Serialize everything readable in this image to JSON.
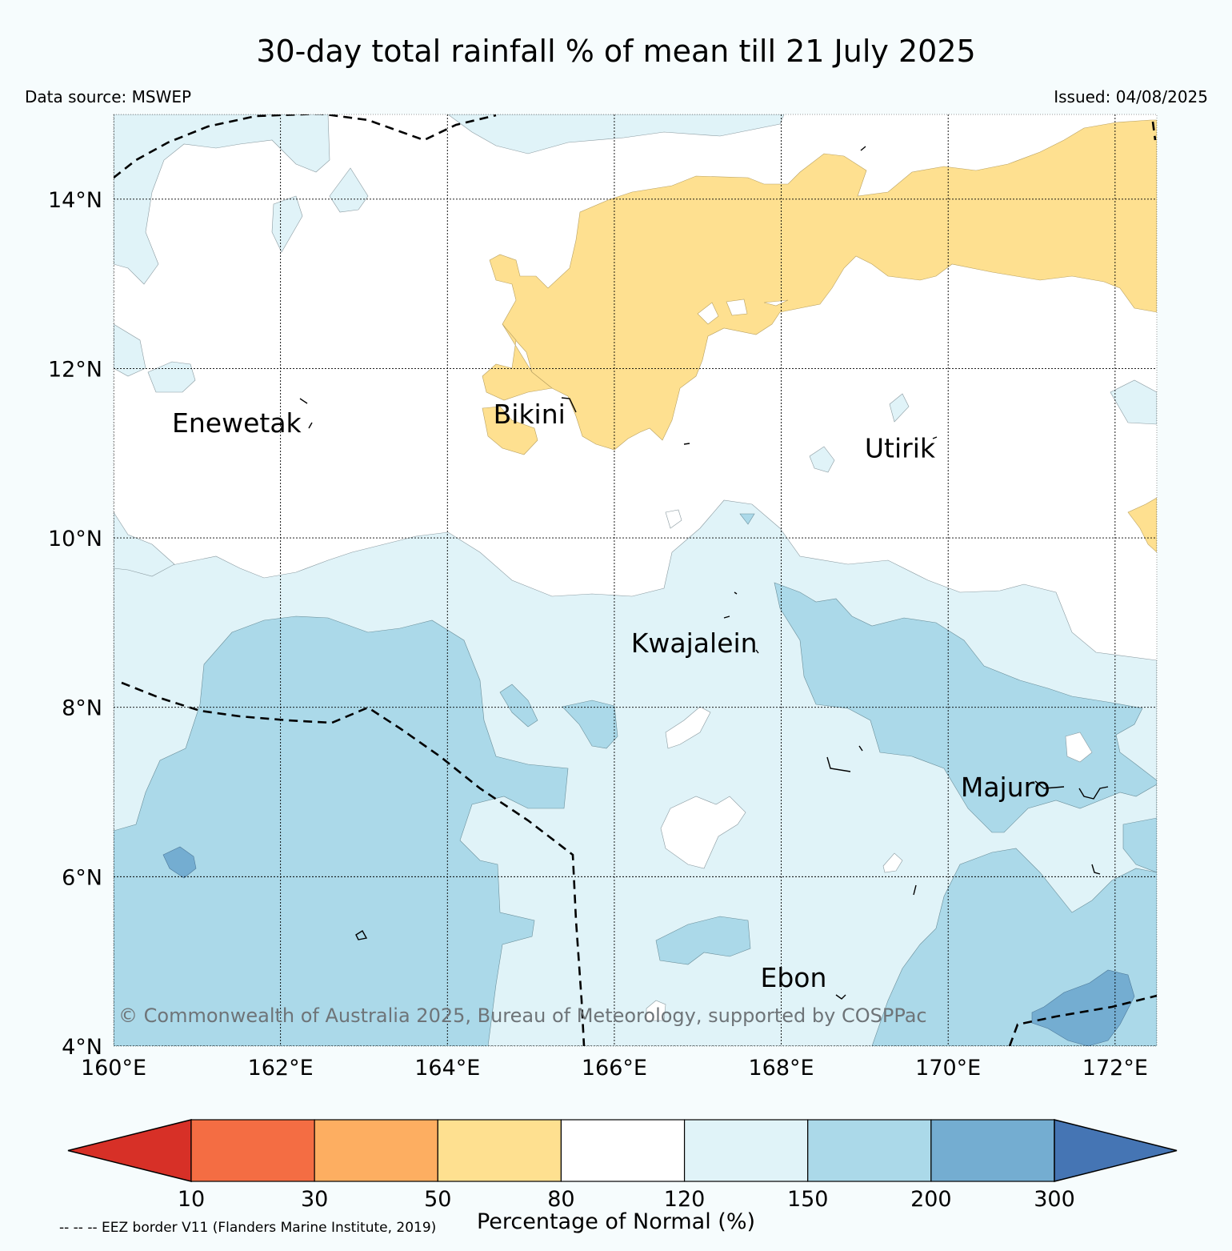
{
  "title": "30-day total rainfall % of mean till 21 July 2025",
  "data_source": "Data source: MSWEP",
  "issued": "Issued: 04/08/2025",
  "copyright": "© Commonwealth of Australia 2025, Bureau of Meteorology, supported by COSPPac",
  "eez_note": "-- -- -- EEZ border V11 (Flanders Marine Institute, 2019)",
  "map": {
    "lon_range": [
      160,
      172.5
    ],
    "lat_range": [
      4,
      15
    ],
    "lon_ticks": [
      160,
      162,
      164,
      166,
      168,
      170,
      172
    ],
    "lat_ticks": [
      4,
      6,
      8,
      10,
      12,
      14
    ],
    "lon_tick_labels": [
      "160°E",
      "162°E",
      "164°E",
      "166°E",
      "168°E",
      "170°E",
      "172°E"
    ],
    "lat_tick_labels": [
      "4°N",
      "6°N",
      "8°N",
      "10°N",
      "12°N",
      "14°N"
    ],
    "gridlines": true,
    "places": [
      {
        "name": "Enewetak",
        "lon": 160.7,
        "lat": 11.25
      },
      {
        "name": "Bikini",
        "lon": 164.55,
        "lat": 11.35
      },
      {
        "name": "Utirik",
        "lon": 169.0,
        "lat": 10.95
      },
      {
        "name": "Kwajalein",
        "lon": 166.2,
        "lat": 8.65
      },
      {
        "name": "Majuro",
        "lon": 170.15,
        "lat": 6.95
      },
      {
        "name": "Ebon",
        "lon": 167.75,
        "lat": 4.7
      }
    ]
  },
  "colorbar": {
    "label": "Percentage of Normal (%)",
    "tick_labels": [
      "10",
      "30",
      "50",
      "80",
      "120",
      "150",
      "200",
      "300"
    ],
    "under_color": "#d73027",
    "over_color": "#4575b4",
    "bins": [
      {
        "from": "10",
        "to": "30",
        "color": "#f46d43"
      },
      {
        "from": "30",
        "to": "50",
        "color": "#fdae61"
      },
      {
        "from": "50",
        "to": "80",
        "color": "#fee090"
      },
      {
        "from": "80",
        "to": "120",
        "color": "#ffffff"
      },
      {
        "from": "120",
        "to": "150",
        "color": "#e0f3f8"
      },
      {
        "from": "150",
        "to": "200",
        "color": "#abd9e9"
      },
      {
        "from": "200",
        "to": "300",
        "color": "#74add1"
      }
    ]
  }
}
